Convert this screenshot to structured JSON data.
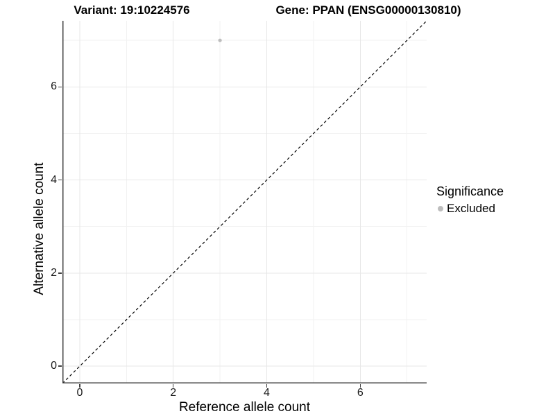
{
  "chart_data": {
    "type": "scatter",
    "titles": {
      "left": "Variant: 19:10224576",
      "right": "Gene: PPAN (ENSG00000130810)"
    },
    "xlabel": "Reference allele count",
    "ylabel": "Alternative allele count",
    "xlim": [
      -0.37,
      7.42
    ],
    "ylim": [
      -0.37,
      7.42
    ],
    "xticks": [
      0,
      2,
      4,
      6
    ],
    "yticks": [
      0,
      2,
      4,
      6
    ],
    "xminor": [
      1,
      3,
      5,
      7
    ],
    "yminor": [
      1,
      3,
      5,
      7
    ],
    "grid": true,
    "series": [
      {
        "name": "Excluded",
        "color": "#bdbdbd",
        "points": [
          {
            "x": 3,
            "y": 7
          }
        ]
      }
    ],
    "reference_line": {
      "type": "identity",
      "slope": 1,
      "intercept": 0,
      "style": "dashed",
      "color": "#000000"
    },
    "legend": {
      "title": "Significance",
      "position": "right",
      "entries": [
        {
          "label": "Excluded",
          "color": "#bdbdbd"
        }
      ]
    }
  },
  "colors": {
    "background": "#ffffff",
    "axis_line": "#404040",
    "major_grid": "#e7e7e7",
    "minor_grid": "#f2f2f2",
    "tick_label": "#1a1a1a",
    "point": "#bdbdbd"
  }
}
